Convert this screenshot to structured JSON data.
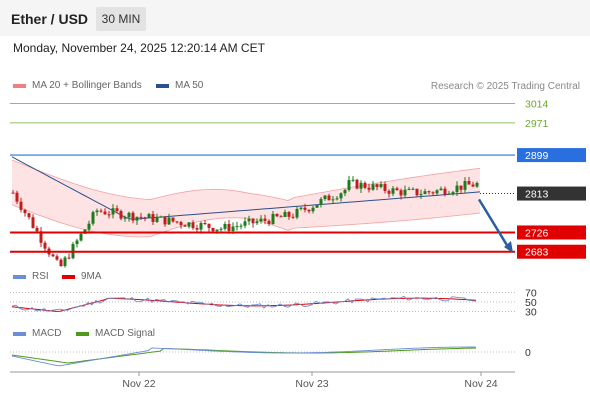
{
  "header": {
    "title": "Ether / USD",
    "timeframe": "30 MIN"
  },
  "timestamp": "Monday, November 24, 2025 12:20:14 AM CET",
  "legend": {
    "bb_label": "MA 20 + Bollinger Bands",
    "ma50_label": "MA 50",
    "credit": "Research © 2025 Trading Central",
    "rsi_label": "RSI",
    "rsi_ma_label": "9MA",
    "macd_label": "MACD",
    "macd_signal_label": "MACD Signal"
  },
  "colors": {
    "bb": "#f08080",
    "bb_fill": "#fde3e3",
    "ma50": "#2b4f8f",
    "bull": "#1e7a1e",
    "bear": "#c21d1d",
    "resistance": "#6aab2a",
    "pivot": "#2a6fe0",
    "support": "#e00000",
    "current": "#333333",
    "rsi": "#6b8ed6",
    "rsi_ma": "#e00000",
    "macd": "#6b8ed6",
    "macd_signal": "#4e9a1c",
    "arrow": "#2b5f9f"
  },
  "chart_data": {
    "type": "candlestick",
    "x_labels": [
      "Nov 22",
      "Nov 23",
      "Nov 24"
    ],
    "ylim": [
      2660,
      3040
    ],
    "price_levels": [
      {
        "value": 3014,
        "label": "3014",
        "role": "resistance"
      },
      {
        "value": 2971,
        "label": "2971",
        "role": "resistance"
      },
      {
        "value": 2899,
        "label": "2899",
        "role": "pivot"
      },
      {
        "value": 2813,
        "label": "2813",
        "role": "current"
      },
      {
        "value": 2726,
        "label": "2726",
        "role": "support"
      },
      {
        "value": 2683,
        "label": "2683",
        "role": "support"
      }
    ],
    "indicators": {
      "rsi_levels": [
        {
          "value": 70,
          "label": "70"
        },
        {
          "value": 50,
          "label": "50"
        },
        {
          "value": 30,
          "label": "30"
        }
      ],
      "macd_zero": {
        "value": 0,
        "label": "0"
      }
    }
  }
}
